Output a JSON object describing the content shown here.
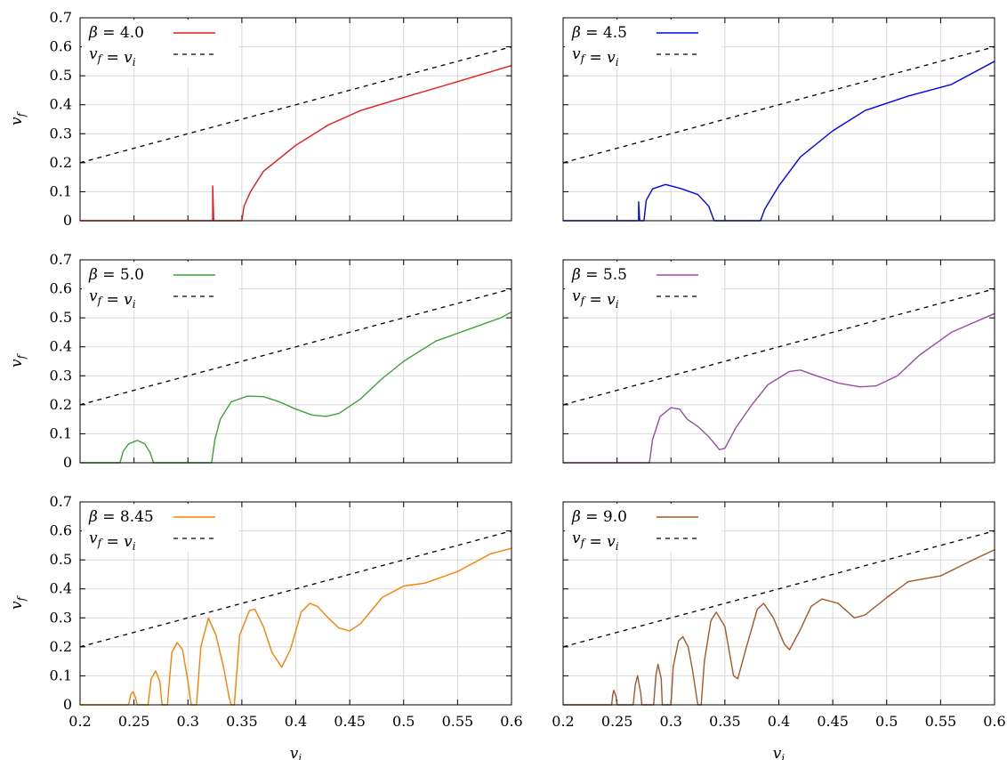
{
  "chart_data": {
    "type": "line",
    "layout": "3x2 grid of panels",
    "grid": true,
    "legend_placement": "top-left",
    "xlim": [
      0.2,
      0.6
    ],
    "ylim": [
      0,
      0.7
    ],
    "x_ticks": [
      "0.2",
      "0.25",
      "0.3",
      "0.35",
      "0.4",
      "0.45",
      "0.5",
      "0.55",
      "0.6"
    ],
    "y_ticks": [
      "0",
      "0.1",
      "0.2",
      "0.3",
      "0.4",
      "0.5",
      "0.6",
      "0.7"
    ],
    "xlabel": "v_i",
    "ylabel": "v_f",
    "reference_line": {
      "label": "v_f = v_i",
      "style": "dashed",
      "color": "#000000",
      "x": [
        0.2,
        0.6
      ],
      "y": [
        0.2,
        0.6
      ]
    },
    "panels": [
      {
        "series_name": "β = 4.0",
        "color": "#e41a1c",
        "points": [
          [
            0.2,
            0
          ],
          [
            0.323,
            0
          ],
          [
            0.323,
            0.12
          ],
          [
            0.324,
            0
          ],
          [
            0.35,
            0
          ],
          [
            0.352,
            0.05
          ],
          [
            0.358,
            0.1
          ],
          [
            0.37,
            0.17
          ],
          [
            0.4,
            0.26
          ],
          [
            0.43,
            0.33
          ],
          [
            0.46,
            0.38
          ],
          [
            0.5,
            0.425
          ],
          [
            0.55,
            0.48
          ],
          [
            0.6,
            0.535
          ]
        ]
      },
      {
        "series_name": "β = 4.5",
        "color": "#0000ff",
        "points": [
          [
            0.2,
            0
          ],
          [
            0.27,
            0
          ],
          [
            0.27,
            0.065
          ],
          [
            0.271,
            0
          ],
          [
            0.275,
            0
          ],
          [
            0.277,
            0.07
          ],
          [
            0.283,
            0.11
          ],
          [
            0.295,
            0.125
          ],
          [
            0.31,
            0.11
          ],
          [
            0.325,
            0.09
          ],
          [
            0.335,
            0.05
          ],
          [
            0.34,
            0
          ],
          [
            0.383,
            0
          ],
          [
            0.387,
            0.04
          ],
          [
            0.4,
            0.12
          ],
          [
            0.42,
            0.22
          ],
          [
            0.45,
            0.31
          ],
          [
            0.48,
            0.38
          ],
          [
            0.52,
            0.43
          ],
          [
            0.56,
            0.47
          ],
          [
            0.6,
            0.55
          ]
        ]
      },
      {
        "series_name": "β = 5.0",
        "color": "#3aa33a",
        "points": [
          [
            0.2,
            0
          ],
          [
            0.237,
            0
          ],
          [
            0.24,
            0.04
          ],
          [
            0.245,
            0.065
          ],
          [
            0.253,
            0.077
          ],
          [
            0.26,
            0.065
          ],
          [
            0.265,
            0.035
          ],
          [
            0.268,
            0
          ],
          [
            0.322,
            0
          ],
          [
            0.325,
            0.08
          ],
          [
            0.33,
            0.15
          ],
          [
            0.34,
            0.21
          ],
          [
            0.355,
            0.23
          ],
          [
            0.37,
            0.228
          ],
          [
            0.385,
            0.21
          ],
          [
            0.4,
            0.185
          ],
          [
            0.415,
            0.165
          ],
          [
            0.428,
            0.16
          ],
          [
            0.44,
            0.17
          ],
          [
            0.46,
            0.22
          ],
          [
            0.48,
            0.29
          ],
          [
            0.5,
            0.35
          ],
          [
            0.53,
            0.42
          ],
          [
            0.56,
            0.46
          ],
          [
            0.59,
            0.5
          ],
          [
            0.6,
            0.52
          ]
        ]
      },
      {
        "series_name": "β = 5.5",
        "color": "#984ea3",
        "points": [
          [
            0.2,
            0
          ],
          [
            0.28,
            0
          ],
          [
            0.283,
            0.08
          ],
          [
            0.29,
            0.16
          ],
          [
            0.3,
            0.19
          ],
          [
            0.308,
            0.185
          ],
          [
            0.315,
            0.15
          ],
          [
            0.325,
            0.125
          ],
          [
            0.335,
            0.09
          ],
          [
            0.345,
            0.045
          ],
          [
            0.35,
            0.05
          ],
          [
            0.36,
            0.12
          ],
          [
            0.375,
            0.2
          ],
          [
            0.39,
            0.27
          ],
          [
            0.41,
            0.315
          ],
          [
            0.42,
            0.32
          ],
          [
            0.435,
            0.3
          ],
          [
            0.455,
            0.275
          ],
          [
            0.475,
            0.262
          ],
          [
            0.49,
            0.265
          ],
          [
            0.51,
            0.3
          ],
          [
            0.53,
            0.37
          ],
          [
            0.56,
            0.45
          ],
          [
            0.6,
            0.515
          ]
        ]
      },
      {
        "series_name": "β = 8.45",
        "color": "#ff7f00",
        "points": [
          [
            0.2,
            0
          ],
          [
            0.245,
            0
          ],
          [
            0.247,
            0.035
          ],
          [
            0.249,
            0.045
          ],
          [
            0.251,
            0.03
          ],
          [
            0.253,
            0
          ],
          [
            0.263,
            0
          ],
          [
            0.266,
            0.09
          ],
          [
            0.27,
            0.117
          ],
          [
            0.274,
            0.08
          ],
          [
            0.276,
            0
          ],
          [
            0.281,
            0
          ],
          [
            0.285,
            0.18
          ],
          [
            0.29,
            0.215
          ],
          [
            0.295,
            0.19
          ],
          [
            0.3,
            0.08
          ],
          [
            0.303,
            0
          ],
          [
            0.308,
            0
          ],
          [
            0.312,
            0.2
          ],
          [
            0.319,
            0.3
          ],
          [
            0.326,
            0.24
          ],
          [
            0.333,
            0.13
          ],
          [
            0.338,
            0.03
          ],
          [
            0.34,
            0
          ],
          [
            0.343,
            0
          ],
          [
            0.348,
            0.24
          ],
          [
            0.357,
            0.325
          ],
          [
            0.362,
            0.33
          ],
          [
            0.37,
            0.27
          ],
          [
            0.378,
            0.18
          ],
          [
            0.387,
            0.13
          ],
          [
            0.395,
            0.19
          ],
          [
            0.405,
            0.32
          ],
          [
            0.413,
            0.35
          ],
          [
            0.42,
            0.34
          ],
          [
            0.43,
            0.3
          ],
          [
            0.44,
            0.265
          ],
          [
            0.45,
            0.255
          ],
          [
            0.46,
            0.28
          ],
          [
            0.48,
            0.37
          ],
          [
            0.5,
            0.41
          ],
          [
            0.52,
            0.42
          ],
          [
            0.55,
            0.46
          ],
          [
            0.58,
            0.52
          ],
          [
            0.6,
            0.54
          ]
        ]
      },
      {
        "series_name": "β = 9.0",
        "color": "#a65628",
        "points": [
          [
            0.2,
            0
          ],
          [
            0.245,
            0
          ],
          [
            0.246,
            0.035
          ],
          [
            0.247,
            0.05
          ],
          [
            0.249,
            0.03
          ],
          [
            0.25,
            0
          ],
          [
            0.265,
            0
          ],
          [
            0.267,
            0.07
          ],
          [
            0.269,
            0.1
          ],
          [
            0.272,
            0.04
          ],
          [
            0.273,
            0
          ],
          [
            0.284,
            0
          ],
          [
            0.286,
            0.1
          ],
          [
            0.288,
            0.14
          ],
          [
            0.291,
            0.09
          ],
          [
            0.292,
            0
          ],
          [
            0.3,
            0
          ],
          [
            0.302,
            0.13
          ],
          [
            0.307,
            0.22
          ],
          [
            0.311,
            0.235
          ],
          [
            0.316,
            0.2
          ],
          [
            0.32,
            0.12
          ],
          [
            0.324,
            0.02
          ],
          [
            0.325,
            0
          ],
          [
            0.328,
            0
          ],
          [
            0.331,
            0.15
          ],
          [
            0.337,
            0.29
          ],
          [
            0.342,
            0.32
          ],
          [
            0.35,
            0.27
          ],
          [
            0.358,
            0.1
          ],
          [
            0.362,
            0.09
          ],
          [
            0.37,
            0.2
          ],
          [
            0.38,
            0.33
          ],
          [
            0.386,
            0.35
          ],
          [
            0.395,
            0.3
          ],
          [
            0.405,
            0.21
          ],
          [
            0.41,
            0.19
          ],
          [
            0.42,
            0.26
          ],
          [
            0.43,
            0.34
          ],
          [
            0.44,
            0.365
          ],
          [
            0.455,
            0.35
          ],
          [
            0.47,
            0.3
          ],
          [
            0.48,
            0.31
          ],
          [
            0.5,
            0.37
          ],
          [
            0.52,
            0.425
          ],
          [
            0.55,
            0.445
          ],
          [
            0.58,
            0.5
          ],
          [
            0.6,
            0.535
          ]
        ]
      }
    ]
  }
}
